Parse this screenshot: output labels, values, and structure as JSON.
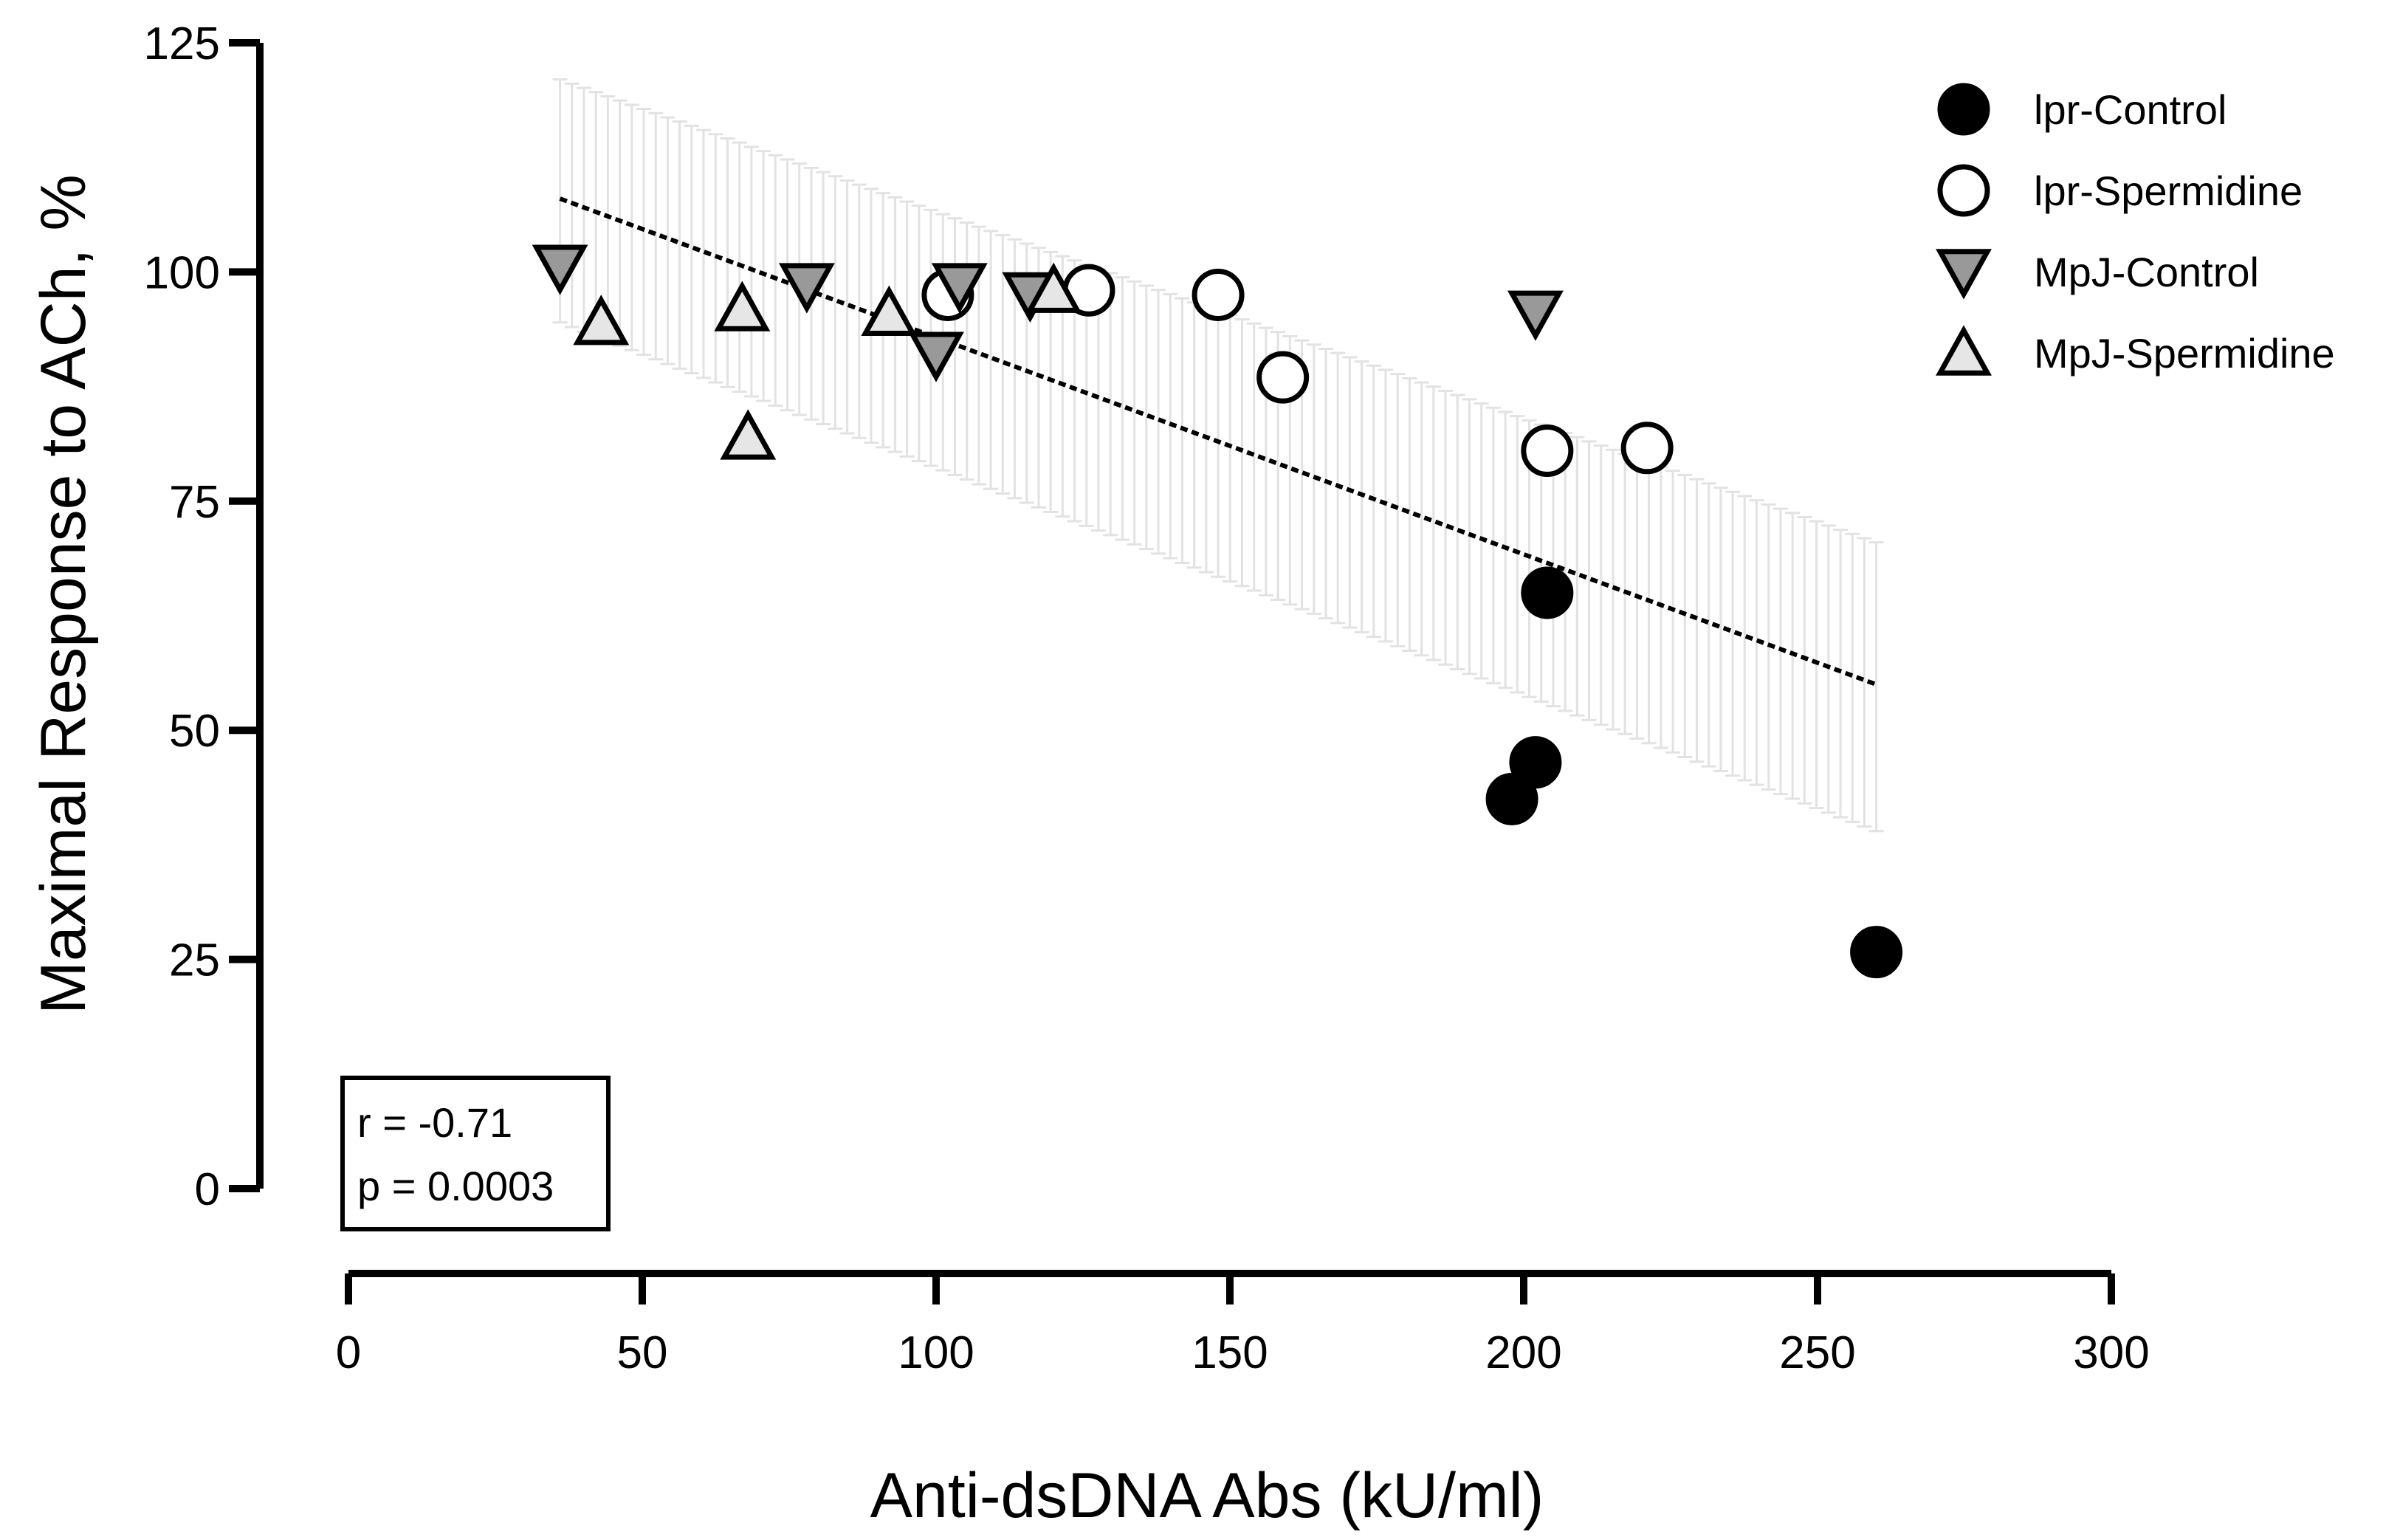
{
  "chart_data": {
    "type": "scatter",
    "title": "",
    "xlabel": "Anti-dsDNA Abs (kU/ml)",
    "ylabel": "Maximal Response to ACh, %",
    "xlim": [
      0,
      300
    ],
    "ylim": [
      0,
      125
    ],
    "xticks": [
      0,
      50,
      100,
      150,
      200,
      250,
      300
    ],
    "yticks": [
      0,
      25,
      50,
      75,
      100,
      125
    ],
    "xtick_labels": [
      "0",
      "50",
      "100",
      "150",
      "200",
      "250",
      "300"
    ],
    "ytick_labels": [
      "0",
      "25",
      "50",
      "75",
      "100",
      "125"
    ],
    "grid": false,
    "legend_position": "top-right",
    "series": [
      {
        "name": "lpr-Control",
        "marker": "circle-filled",
        "fill": "#000000",
        "points": [
          [
            204,
            65
          ],
          [
            202,
            46.5
          ],
          [
            198,
            42.5
          ],
          [
            260,
            25.8
          ]
        ]
      },
      {
        "name": "lpr-Spermidine",
        "marker": "circle-open",
        "fill": "#ffffff",
        "points": [
          [
            102,
            97.5
          ],
          [
            126,
            98
          ],
          [
            148,
            97.5
          ],
          [
            159,
            88.5
          ],
          [
            204,
            80.5
          ],
          [
            221,
            80.8
          ]
        ]
      },
      {
        "name": "MpJ-Control",
        "marker": "triangle-down",
        "fill": "#999999",
        "points": [
          [
            36,
            100.5
          ],
          [
            78,
            98.5
          ],
          [
            104,
            98.5
          ],
          [
            116,
            97.5
          ],
          [
            100,
            91
          ],
          [
            202,
            95.5
          ]
        ]
      },
      {
        "name": "MpJ-Spermidine",
        "marker": "triangle-up",
        "fill": "#e6e6e6",
        "points": [
          [
            43,
            94.5
          ],
          [
            67,
            96
          ],
          [
            92,
            95.5
          ],
          [
            120,
            98
          ],
          [
            68,
            82
          ]
        ]
      }
    ],
    "regression": {
      "x_range": [
        36,
        260
      ],
      "y_at_start": 108,
      "y_at_end": 55,
      "ci_upper_start": 121,
      "ci_upper_end": 70.5,
      "ci_lower_start": 94.5,
      "ci_lower_end": 39
    },
    "annotations": {
      "r_text": "r = -0.71",
      "p_text": "p = 0.0003"
    }
  }
}
